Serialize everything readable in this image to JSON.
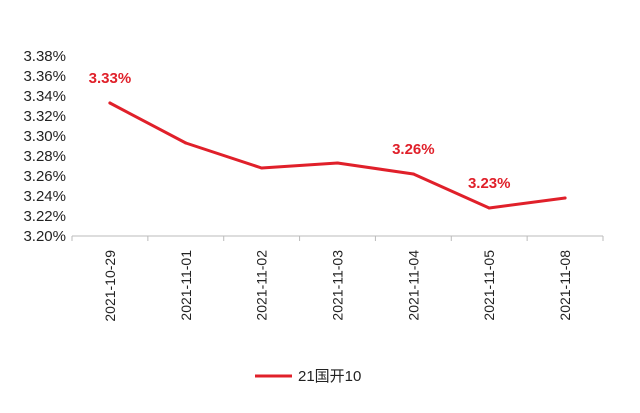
{
  "chart_data": {
    "type": "line",
    "categories": [
      "2021-10-29",
      "2021-11-01",
      "2021-11-02",
      "2021-11-03",
      "2021-11-04",
      "2021-11-05",
      "2021-11-08"
    ],
    "series": [
      {
        "name": "21国开10",
        "values": [
          3.333,
          3.293,
          3.268,
          3.273,
          3.262,
          3.228,
          3.238
        ],
        "color": "#e0202a"
      }
    ],
    "y_ticks": [
      "3.20%",
      "3.22%",
      "3.24%",
      "3.26%",
      "3.28%",
      "3.30%",
      "3.32%",
      "3.34%",
      "3.36%",
      "3.38%"
    ],
    "ylim": [
      3.2,
      3.38
    ],
    "data_labels": [
      {
        "index": 0,
        "text": "3.33%"
      },
      {
        "index": 4,
        "text": "3.26%"
      },
      {
        "index": 5,
        "text": "3.23%"
      }
    ],
    "grid": false,
    "legend": {
      "position": "bottom-center",
      "label": "21国开10"
    },
    "title": "",
    "xlabel": "",
    "ylabel": ""
  }
}
